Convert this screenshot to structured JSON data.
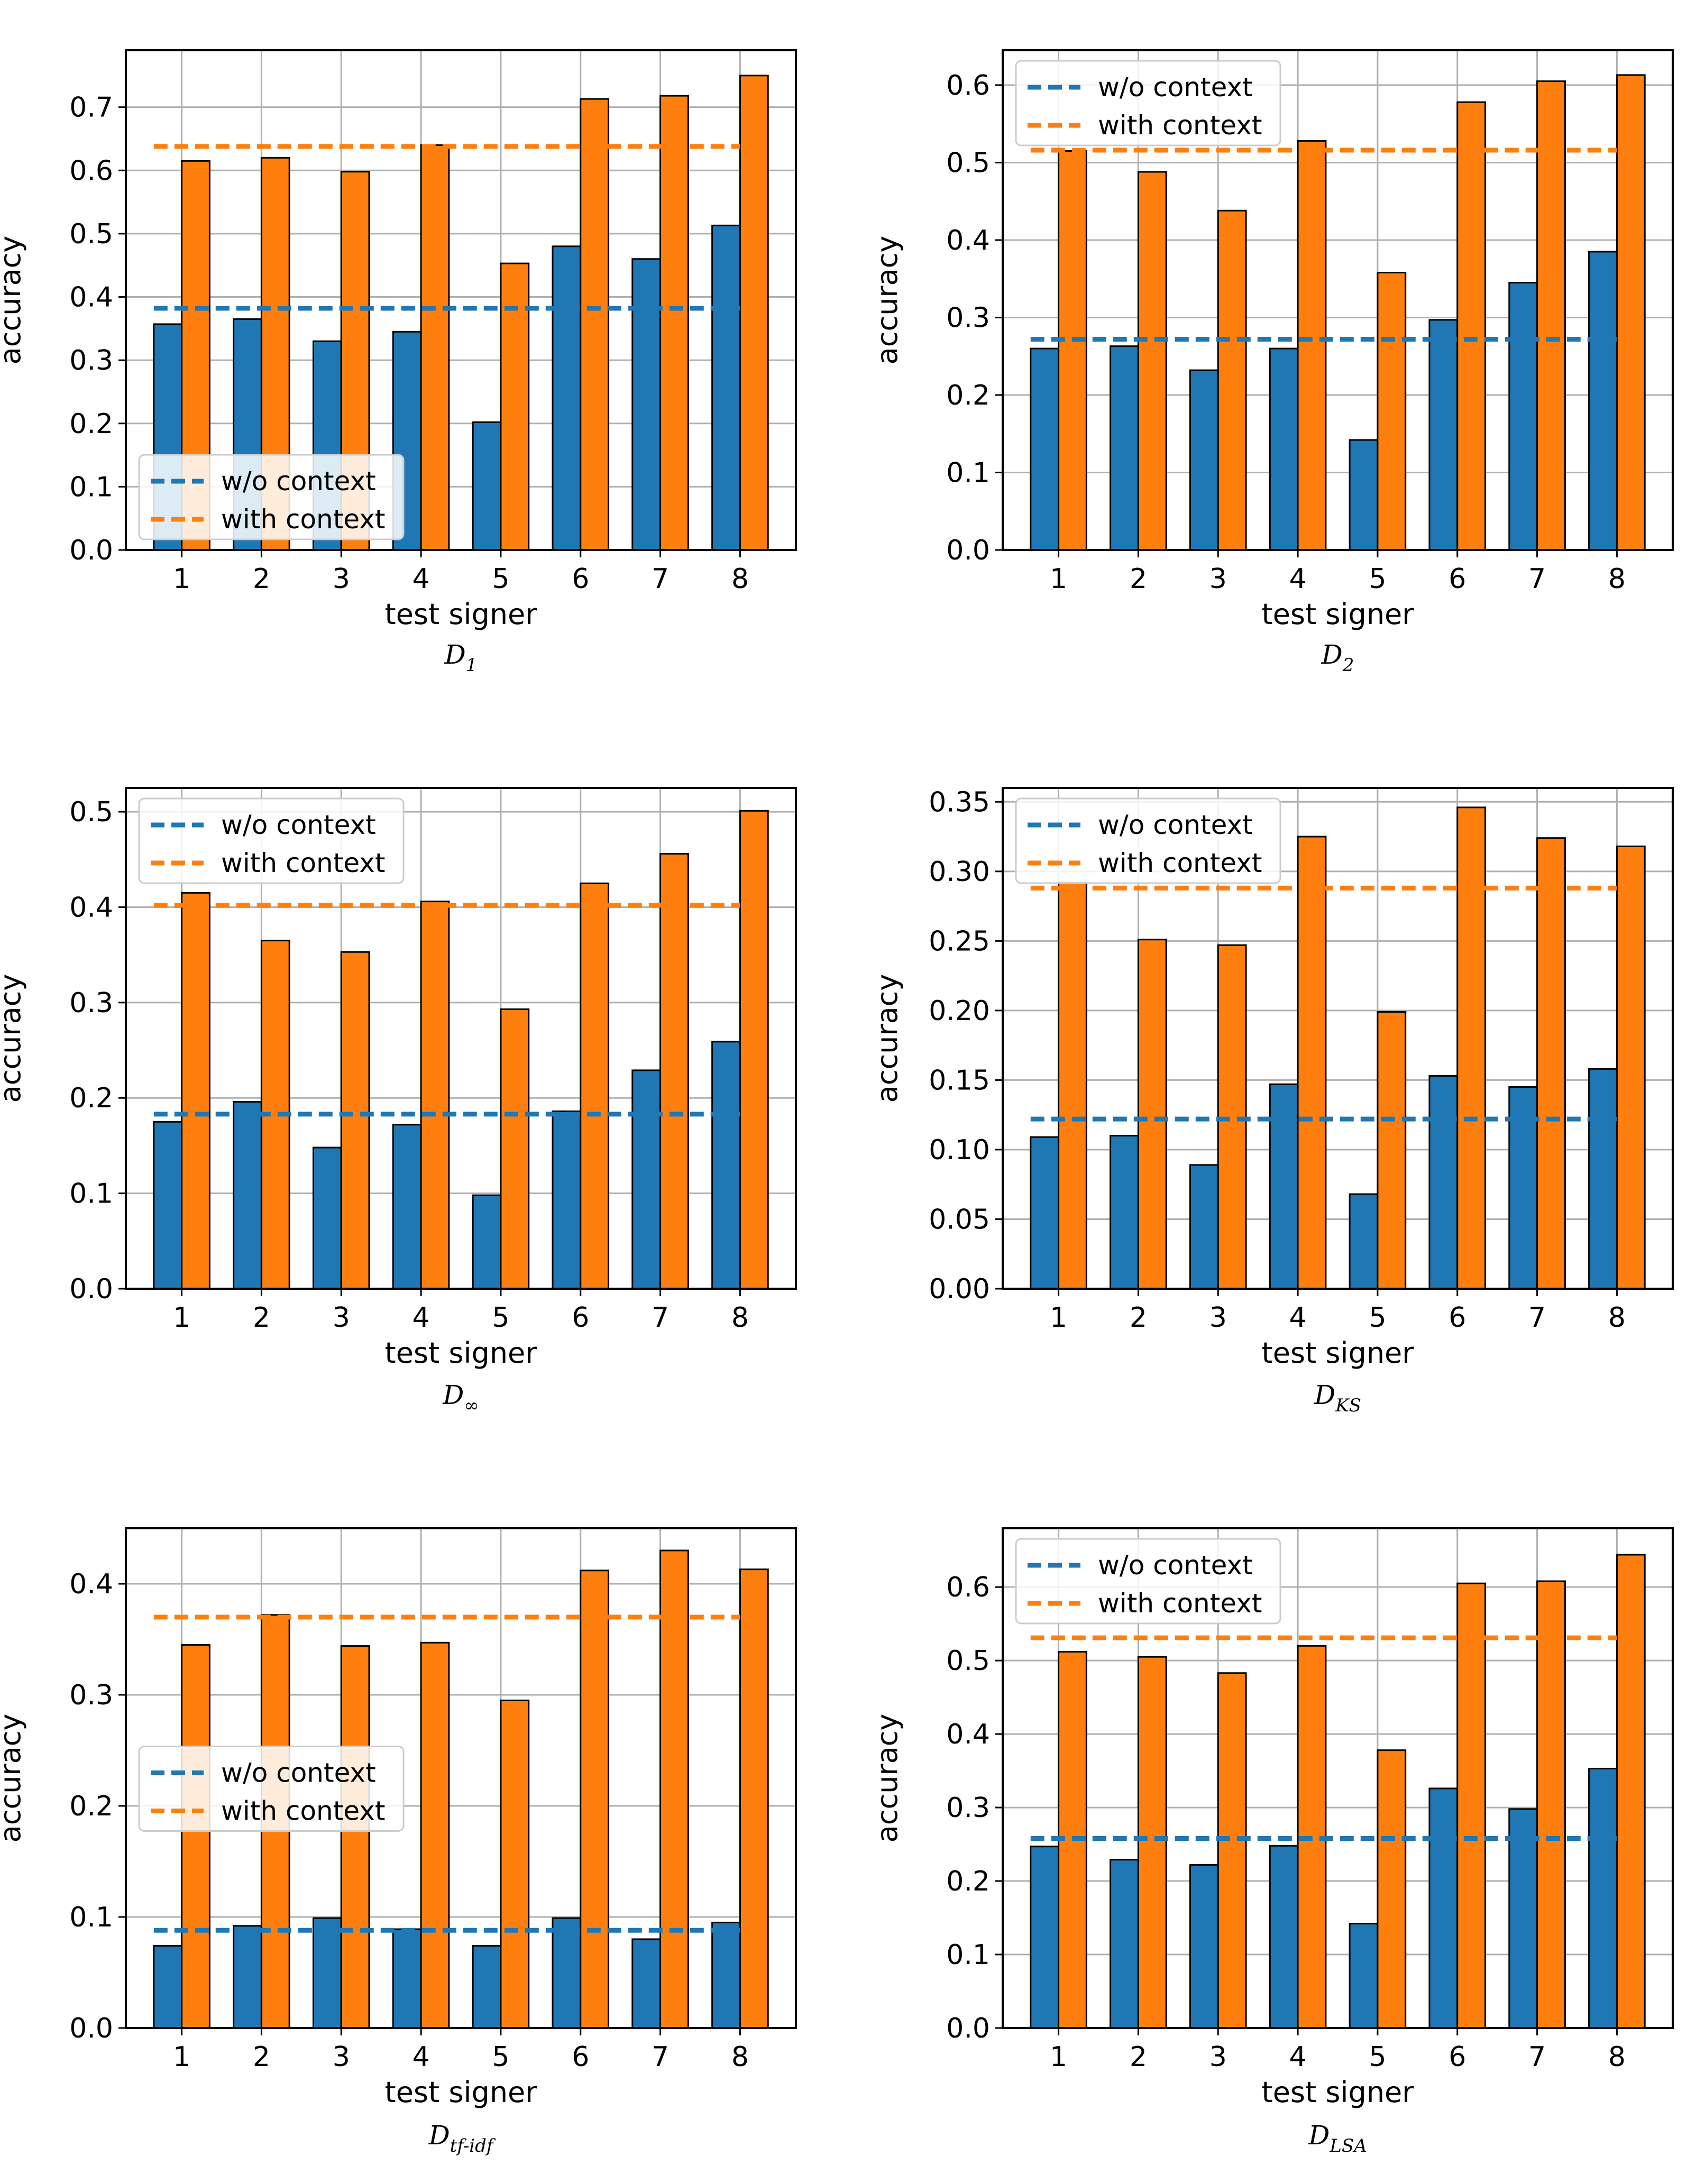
{
  "colors": {
    "without_context": "#1f77b4",
    "with_context": "#ff7f0e",
    "grid": "#b0b0b0",
    "frame": "#000000"
  },
  "chart_data": [
    {
      "type": "bar",
      "caption": "D",
      "caption_sub": "1",
      "xlabel": "test signer",
      "ylabel": "accuracy",
      "categories": [
        "1",
        "2",
        "3",
        "4",
        "5",
        "6",
        "7",
        "8"
      ],
      "ylim": [
        0,
        0.79
      ],
      "yticks": [
        0.0,
        0.1,
        0.2,
        0.3,
        0.4,
        0.5,
        0.6,
        0.7
      ],
      "ytick_labels": [
        "0.0",
        "0.1",
        "0.2",
        "0.3",
        "0.4",
        "0.5",
        "0.6",
        "0.7"
      ],
      "grid": true,
      "legend_position": "lower-left",
      "series": [
        {
          "name": "w/o context",
          "values": [
            0.357,
            0.365,
            0.33,
            0.345,
            0.202,
            0.48,
            0.46,
            0.513
          ],
          "mean": 0.382
        },
        {
          "name": "with context",
          "values": [
            0.615,
            0.62,
            0.598,
            0.64,
            0.453,
            0.713,
            0.718,
            0.75
          ],
          "mean": 0.638
        }
      ]
    },
    {
      "type": "bar",
      "caption": "D",
      "caption_sub": "2",
      "xlabel": "test signer",
      "ylabel": "accuracy",
      "categories": [
        "1",
        "2",
        "3",
        "4",
        "5",
        "6",
        "7",
        "8"
      ],
      "ylim": [
        0,
        0.645
      ],
      "yticks": [
        0.0,
        0.1,
        0.2,
        0.3,
        0.4,
        0.5,
        0.6
      ],
      "ytick_labels": [
        "0.0",
        "0.1",
        "0.2",
        "0.3",
        "0.4",
        "0.5",
        "0.6"
      ],
      "grid": true,
      "legend_position": "upper-left",
      "series": [
        {
          "name": "w/o context",
          "values": [
            0.26,
            0.263,
            0.232,
            0.26,
            0.142,
            0.297,
            0.345,
            0.385
          ],
          "mean": 0.272
        },
        {
          "name": "with context",
          "values": [
            0.515,
            0.488,
            0.438,
            0.528,
            0.358,
            0.578,
            0.605,
            0.613
          ],
          "mean": 0.516
        }
      ]
    },
    {
      "type": "bar",
      "caption": "D",
      "caption_sub": "∞",
      "xlabel": "test signer",
      "ylabel": "accuracy",
      "categories": [
        "1",
        "2",
        "3",
        "4",
        "5",
        "6",
        "7",
        "8"
      ],
      "ylim": [
        0,
        0.525
      ],
      "yticks": [
        0.0,
        0.1,
        0.2,
        0.3,
        0.4,
        0.5
      ],
      "ytick_labels": [
        "0.0",
        "0.1",
        "0.2",
        "0.3",
        "0.4",
        "0.5"
      ],
      "grid": true,
      "legend_position": "upper-left",
      "series": [
        {
          "name": "w/o context",
          "values": [
            0.175,
            0.196,
            0.148,
            0.172,
            0.098,
            0.186,
            0.229,
            0.259
          ],
          "mean": 0.183
        },
        {
          "name": "with context",
          "values": [
            0.415,
            0.365,
            0.353,
            0.406,
            0.293,
            0.425,
            0.456,
            0.501
          ],
          "mean": 0.402
        }
      ]
    },
    {
      "type": "bar",
      "caption": "D",
      "caption_sub": "KS",
      "xlabel": "test signer",
      "ylabel": "accuracy",
      "categories": [
        "1",
        "2",
        "3",
        "4",
        "5",
        "6",
        "7",
        "8"
      ],
      "ylim": [
        0,
        0.36
      ],
      "yticks": [
        0.0,
        0.05,
        0.1,
        0.15,
        0.2,
        0.25,
        0.3,
        0.35
      ],
      "ytick_labels": [
        "0.00",
        "0.05",
        "0.10",
        "0.15",
        "0.20",
        "0.25",
        "0.30",
        "0.35"
      ],
      "grid": true,
      "legend_position": "upper-left",
      "series": [
        {
          "name": "w/o context",
          "values": [
            0.109,
            0.11,
            0.089,
            0.147,
            0.068,
            0.153,
            0.145,
            0.158
          ],
          "mean": 0.122
        },
        {
          "name": "with context",
          "values": [
            0.292,
            0.251,
            0.247,
            0.325,
            0.199,
            0.346,
            0.324,
            0.318
          ],
          "mean": 0.288
        }
      ]
    },
    {
      "type": "bar",
      "caption": "D",
      "caption_sub": "tf-idf",
      "xlabel": "test signer",
      "ylabel": "accuracy",
      "categories": [
        "1",
        "2",
        "3",
        "4",
        "5",
        "6",
        "7",
        "8"
      ],
      "ylim": [
        0,
        0.45
      ],
      "yticks": [
        0.0,
        0.1,
        0.2,
        0.3,
        0.4
      ],
      "ytick_labels": [
        "0.0",
        "0.1",
        "0.2",
        "0.3",
        "0.4"
      ],
      "grid": true,
      "legend_position": "center-left",
      "series": [
        {
          "name": "w/o context",
          "values": [
            0.074,
            0.092,
            0.099,
            0.089,
            0.074,
            0.099,
            0.08,
            0.095
          ],
          "mean": 0.088
        },
        {
          "name": "with context",
          "values": [
            0.345,
            0.372,
            0.344,
            0.347,
            0.295,
            0.412,
            0.43,
            0.413
          ],
          "mean": 0.37
        }
      ]
    },
    {
      "type": "bar",
      "caption": "D",
      "caption_sub": "LSA",
      "xlabel": "test signer",
      "ylabel": "accuracy",
      "categories": [
        "1",
        "2",
        "3",
        "4",
        "5",
        "6",
        "7",
        "8"
      ],
      "ylim": [
        0,
        0.68
      ],
      "yticks": [
        0.0,
        0.1,
        0.2,
        0.3,
        0.4,
        0.5,
        0.6
      ],
      "ytick_labels": [
        "0.0",
        "0.1",
        "0.2",
        "0.3",
        "0.4",
        "0.5",
        "0.6"
      ],
      "grid": true,
      "legend_position": "upper-left",
      "series": [
        {
          "name": "w/o context",
          "values": [
            0.247,
            0.229,
            0.222,
            0.248,
            0.142,
            0.326,
            0.298,
            0.353
          ],
          "mean": 0.258
        },
        {
          "name": "with context",
          "values": [
            0.512,
            0.505,
            0.483,
            0.52,
            0.378,
            0.605,
            0.608,
            0.644
          ],
          "mean": 0.531
        }
      ]
    }
  ]
}
